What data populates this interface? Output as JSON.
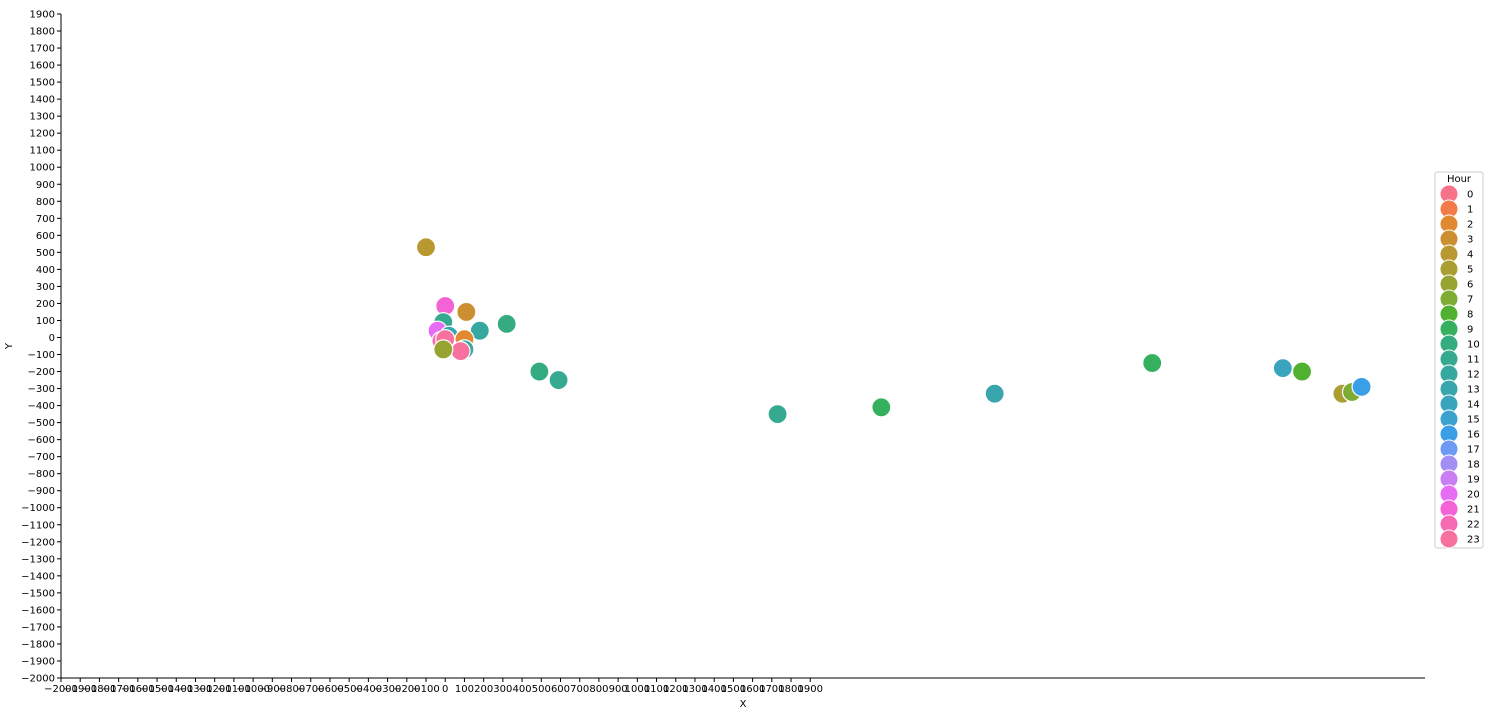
{
  "chart_data": {
    "type": "scatter",
    "xlabel": "X",
    "ylabel": "Y",
    "xlim": [
      -2000,
      5100
    ],
    "ylim": [
      -2000,
      1900
    ],
    "xticks": [
      -2000,
      -1900,
      -1800,
      -1700,
      -1600,
      -1500,
      -1400,
      -1300,
      -1200,
      -1100,
      -1000,
      -900,
      -800,
      -700,
      -600,
      -500,
      -400,
      -300,
      -200,
      -100,
      0,
      100,
      200,
      300,
      400,
      500,
      600,
      700,
      800,
      900,
      1000,
      1100,
      1200,
      1300,
      1400,
      1500,
      1600,
      1700,
      1800,
      1900
    ],
    "yticks": [
      1900,
      1800,
      1700,
      1600,
      1500,
      1400,
      1300,
      1200,
      1100,
      1000,
      900,
      800,
      700,
      600,
      500,
      400,
      300,
      200,
      100,
      0,
      -100,
      -200,
      -300,
      -400,
      -500,
      -600,
      -700,
      -800,
      -900,
      -1000,
      -1100,
      -1200,
      -1300,
      -1400,
      -1500,
      -1600,
      -1700,
      -1800,
      -1900,
      -2000
    ],
    "legend_title": "Hour",
    "legend_position": "right",
    "hue_levels": [
      {
        "label": "0",
        "color": "#f77189"
      },
      {
        "label": "1",
        "color": "#f27b48"
      },
      {
        "label": "2",
        "color": "#e08931"
      },
      {
        "label": "3",
        "color": "#cb8f32"
      },
      {
        "label": "4",
        "color": "#b99832"
      },
      {
        "label": "5",
        "color": "#a89e32"
      },
      {
        "label": "6",
        "color": "#97a432"
      },
      {
        "label": "7",
        "color": "#7eab32"
      },
      {
        "label": "8",
        "color": "#50b131"
      },
      {
        "label": "9",
        "color": "#34b05f"
      },
      {
        "label": "10",
        "color": "#35ac7f"
      },
      {
        "label": "11",
        "color": "#36aa91"
      },
      {
        "label": "12",
        "color": "#37a89f"
      },
      {
        "label": "13",
        "color": "#38a6ac"
      },
      {
        "label": "14",
        "color": "#39a4bb"
      },
      {
        "label": "15",
        "color": "#3ba2cd"
      },
      {
        "label": "16",
        "color": "#3b9fe7"
      },
      {
        "label": "17",
        "color": "#6e9af4"
      },
      {
        "label": "18",
        "color": "#a18ff4"
      },
      {
        "label": "19",
        "color": "#c97ef4"
      },
      {
        "label": "20",
        "color": "#e66cf4"
      },
      {
        "label": "21",
        "color": "#f463d5"
      },
      {
        "label": "22",
        "color": "#f66bb4"
      },
      {
        "label": "23",
        "color": "#f7719f"
      }
    ],
    "points": [
      {
        "x": -100,
        "y": 530,
        "hour": 4
      },
      {
        "x": 110,
        "y": 150,
        "hour": 3
      },
      {
        "x": 0,
        "y": 185,
        "hour": 21
      },
      {
        "x": -10,
        "y": 90,
        "hour": 11
      },
      {
        "x": 320,
        "y": 80,
        "hour": 10
      },
      {
        "x": 180,
        "y": 40,
        "hour": 12
      },
      {
        "x": -40,
        "y": 40,
        "hour": 20
      },
      {
        "x": 20,
        "y": 10,
        "hour": 13
      },
      {
        "x": 100,
        "y": -10,
        "hour": 2
      },
      {
        "x": -20,
        "y": -20,
        "hour": 22
      },
      {
        "x": 0,
        "y": -10,
        "hour": 23
      },
      {
        "x": 100,
        "y": -70,
        "hour": 12
      },
      {
        "x": 80,
        "y": -80,
        "hour": 23
      },
      {
        "x": -10,
        "y": -70,
        "hour": 6
      },
      {
        "x": 490,
        "y": -200,
        "hour": 10
      },
      {
        "x": 590,
        "y": -250,
        "hour": 11
      },
      {
        "x": 1730,
        "y": -450,
        "hour": 11
      },
      {
        "x": 2270,
        "y": -410,
        "hour": 9
      },
      {
        "x": 2860,
        "y": -330,
        "hour": 13
      },
      {
        "x": 3680,
        "y": -150,
        "hour": 9
      },
      {
        "x": 4360,
        "y": -180,
        "hour": 14
      },
      {
        "x": 4460,
        "y": -200,
        "hour": 8
      },
      {
        "x": 4670,
        "y": -330,
        "hour": 5
      },
      {
        "x": 4720,
        "y": -320,
        "hour": 7
      },
      {
        "x": 4770,
        "y": -290,
        "hour": 16
      }
    ]
  }
}
